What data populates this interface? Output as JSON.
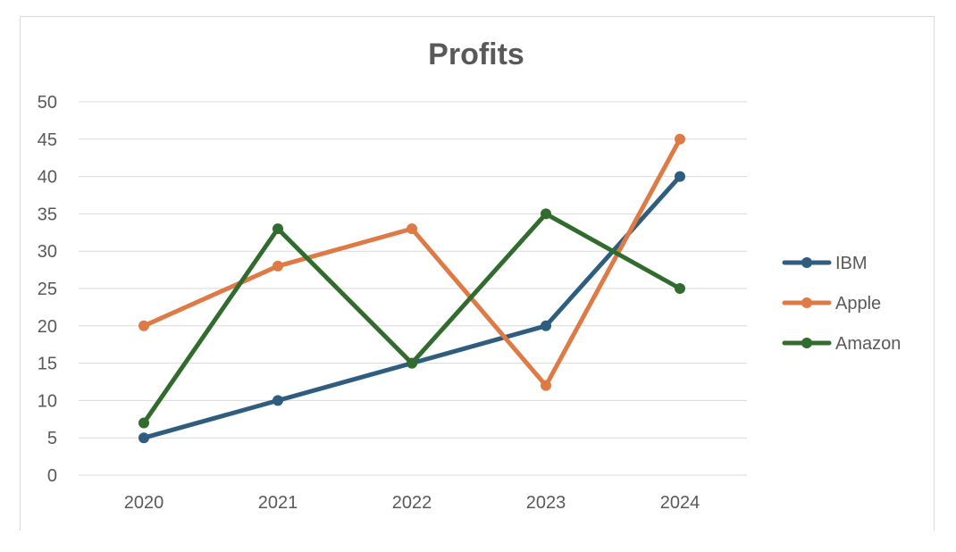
{
  "chart_data": {
    "type": "line",
    "title": "Profits",
    "xlabel": "",
    "ylabel": "",
    "x": [
      "2020",
      "2021",
      "2022",
      "2023",
      "2024"
    ],
    "ylim": [
      0,
      50
    ],
    "yticks": [
      "0",
      "5",
      "10",
      "15",
      "20",
      "25",
      "30",
      "35",
      "40",
      "45",
      "50"
    ],
    "grid": true,
    "legend_position": "right",
    "series": [
      {
        "name": "IBM",
        "color": "#2e5d80",
        "values": [
          5,
          10,
          15,
          20,
          40
        ]
      },
      {
        "name": "Apple",
        "color": "#de7a45",
        "values": [
          20,
          28,
          33,
          12,
          45
        ]
      },
      {
        "name": "Amazon",
        "color": "#316b2e",
        "values": [
          7,
          33,
          15,
          35,
          25
        ]
      }
    ]
  }
}
